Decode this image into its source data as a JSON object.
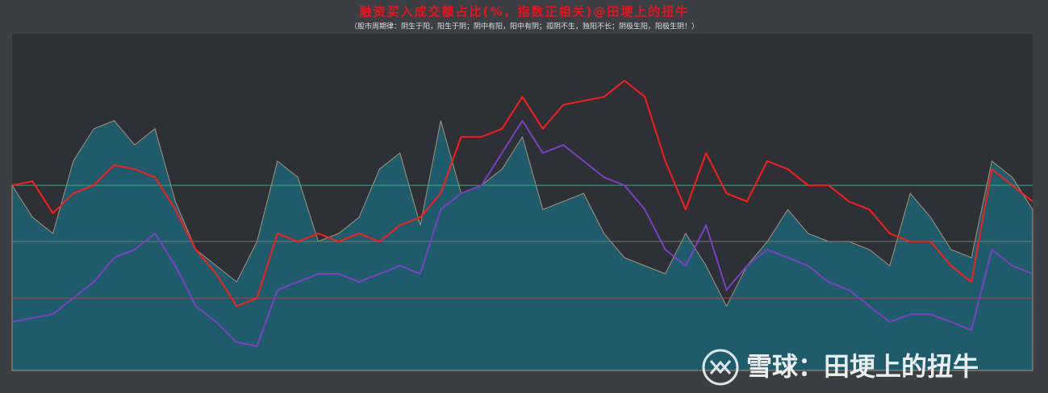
{
  "chart_data": {
    "type": "line",
    "title": "融资买入成交额占比(%，指数正相关)@田埂上的扭牛",
    "subtitle": "（股市周期律：阴生于阳，阳生于阴；阴中有阳，阳中有阴；孤阴不生，独阳不长；阴极生阳，阳极生阴！）",
    "watermark": "雪球：田埂上的扭牛",
    "ylim": [
      0,
      100
    ],
    "area": {
      "color": "#1e5c6b",
      "edge": "#a89279",
      "values": [
        55,
        45.5,
        40.7,
        62.2,
        71.8,
        74.2,
        67,
        71.8,
        50.2,
        35.9,
        31.1,
        26.3,
        38.3,
        62.2,
        57.4,
        38.3,
        40.7,
        45.5,
        59.8,
        64.6,
        43.1,
        74.2,
        52.6,
        55,
        59.8,
        69.4,
        47.8,
        50.2,
        52.6,
        40.7,
        33.5,
        31.1,
        28.7,
        40.7,
        31.1,
        19.1,
        31.1,
        38.3,
        47.8,
        40.7,
        38.3,
        38.3,
        35.9,
        31.1,
        52.6,
        45.5,
        35.9,
        33.5,
        62.2,
        57.4,
        47.8
      ]
    },
    "series": [
      {
        "color": "#ff1a1a",
        "values": [
          55,
          56.2,
          46.7,
          52.6,
          55,
          61,
          59.8,
          57.4,
          47.8,
          35.9,
          28.7,
          19.1,
          21.5,
          40.7,
          38.3,
          40.7,
          38.3,
          40.7,
          38.3,
          43.1,
          45.5,
          52.6,
          69.4,
          69.4,
          71.8,
          81.3,
          71.8,
          78.9,
          80.1,
          81.3,
          86.1,
          81.3,
          62.2,
          47.8,
          64.6,
          52.6,
          50.2,
          62.2,
          59.8,
          55,
          55,
          50.2,
          47.8,
          40.7,
          38.3,
          38.3,
          31.1,
          26.3,
          59.8,
          55,
          50.2
        ]
      },
      {
        "color": "#7b3fc4",
        "values": [
          14.4,
          15.6,
          16.7,
          21.5,
          26.3,
          33.5,
          35.9,
          40.7,
          31.1,
          19.1,
          14.4,
          8.4,
          7.2,
          23.9,
          26.3,
          28.7,
          28.7,
          26.3,
          28.7,
          31.1,
          28.7,
          47.8,
          52.6,
          55,
          64.6,
          74.2,
          64.6,
          67,
          62.2,
          57.4,
          55,
          47.8,
          35.9,
          31.1,
          43.1,
          23.9,
          31.1,
          35.9,
          33.5,
          31.1,
          26.3,
          23.9,
          19.1,
          14.4,
          16.7,
          16.7,
          14.4,
          12,
          35.9,
          31.1,
          28.7
        ]
      }
    ],
    "hlines": [
      {
        "value": 55,
        "color": "#3aa88a"
      },
      {
        "value": 38.3,
        "color": "#7a7a6a"
      },
      {
        "value": 21.5,
        "color": "#9a4a4a"
      }
    ]
  }
}
